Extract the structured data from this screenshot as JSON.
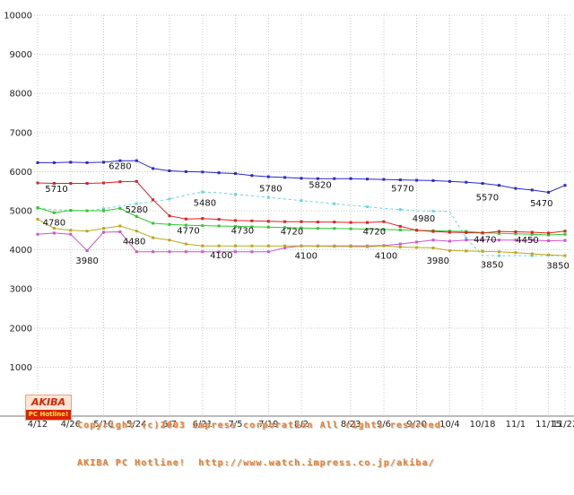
{
  "chart_data": {
    "type": "line",
    "title": "",
    "xlabel": "",
    "ylabel": "",
    "grid": true,
    "legend": "none",
    "background": "#ffffff",
    "y_axis": {
      "min": 0,
      "max": 10000,
      "tick_interval": 1000,
      "tick_labels": [
        "1000",
        "2000",
        "3000",
        "4000",
        "5000",
        "6000",
        "7000",
        "8000",
        "9000",
        "10000"
      ]
    },
    "x_axis": {
      "tick_labels": [
        "4/12",
        "4/26",
        "5/10",
        "5/24",
        "6/7",
        "6/21",
        "7/5",
        "7/19",
        "8/2",
        "8/23",
        "9/6",
        "9/20",
        "10/4",
        "10/18",
        "11/1",
        "11/15",
        "11/22"
      ],
      "tick_days": [
        0,
        14,
        28,
        42,
        56,
        70,
        84,
        98,
        112,
        133,
        147,
        161,
        175,
        189,
        203,
        217,
        224
      ]
    },
    "x_week_dates": [
      "4/12",
      "4/19",
      "4/26",
      "5/3",
      "5/10",
      "5/17",
      "5/24",
      "5/31",
      "6/7",
      "6/14",
      "6/21",
      "6/28",
      "7/5",
      "7/12",
      "7/19",
      "7/26",
      "8/2",
      "8/9",
      "8/16",
      "8/23",
      "8/30",
      "9/6",
      "9/13",
      "9/20",
      "9/27",
      "10/4",
      "10/11",
      "10/18",
      "10/25",
      "11/1",
      "11/8",
      "11/15",
      "11/22"
    ],
    "series": [
      {
        "name": "series-cyan-dashed",
        "color": "#66d5e5",
        "dash": "3 3",
        "marker_every": 2,
        "values": [
          5060,
          5030,
          5010,
          5000,
          5050,
          5120,
          5180,
          5230,
          5300,
          5400,
          5480,
          5460,
          5420,
          5380,
          5340,
          5300,
          5260,
          5220,
          5180,
          5140,
          5100,
          5060,
          5030,
          5000,
          4990,
          4980,
          4300,
          3850,
          3850,
          3850,
          3850,
          3850,
          3850
        ]
      },
      {
        "name": "series-magenta",
        "color": "#cc55cc",
        "dash": null,
        "marker_every": 1,
        "values": [
          4400,
          4430,
          4400,
          3980,
          4450,
          4460,
          3950,
          3950,
          3950,
          3950,
          3950,
          3950,
          3950,
          3950,
          3950,
          4050,
          4100,
          4100,
          4100,
          4100,
          4100,
          4110,
          4150,
          4200,
          4250,
          4220,
          4250,
          4260,
          4250,
          4250,
          4250,
          4230,
          4240
        ]
      },
      {
        "name": "series-olive",
        "color": "#b9a81f",
        "dash": null,
        "marker_every": 1,
        "values": [
          4780,
          4550,
          4500,
          4480,
          4550,
          4610,
          4480,
          4310,
          4250,
          4150,
          4100,
          4100,
          4100,
          4100,
          4100,
          4100,
          4100,
          4095,
          4090,
          4085,
          4080,
          4100,
          4070,
          4060,
          4050,
          3980,
          3970,
          3960,
          3950,
          3930,
          3900,
          3870,
          3850
        ]
      },
      {
        "name": "series-green",
        "color": "#30c830",
        "dash": null,
        "marker_every": 1,
        "values": [
          5080,
          4950,
          5010,
          5000,
          5000,
          5060,
          4850,
          4680,
          4650,
          4630,
          4620,
          4610,
          4600,
          4590,
          4580,
          4570,
          4560,
          4550,
          4545,
          4540,
          4530,
          4520,
          4510,
          4500,
          4490,
          4480,
          4470,
          4440,
          4420,
          4410,
          4400,
          4380,
          4400
        ]
      },
      {
        "name": "series-red",
        "color": "#dd2020",
        "dash": null,
        "marker_every": 1,
        "values": [
          5710,
          5700,
          5700,
          5700,
          5710,
          5740,
          5750,
          5280,
          4870,
          4790,
          4800,
          4780,
          4750,
          4740,
          4730,
          4720,
          4720,
          4710,
          4710,
          4700,
          4700,
          4720,
          4600,
          4500,
          4470,
          4450,
          4440,
          4430,
          4470,
          4460,
          4450,
          4430,
          4480
        ]
      },
      {
        "name": "series-blue",
        "color": "#2929c8",
        "dash": null,
        "marker_every": 1,
        "values": [
          6230,
          6230,
          6240,
          6230,
          6240,
          6280,
          6280,
          6080,
          6020,
          6000,
          5990,
          5970,
          5950,
          5900,
          5870,
          5850,
          5830,
          5820,
          5820,
          5820,
          5810,
          5800,
          5790,
          5780,
          5770,
          5750,
          5730,
          5700,
          5650,
          5570,
          5530,
          5470,
          5650
        ]
      }
    ],
    "annotations": [
      {
        "text": "6280",
        "day": 35,
        "value": 6150
      },
      {
        "text": "5710",
        "day": 8,
        "value": 5560
      },
      {
        "text": "5280",
        "day": 42,
        "value": 5030
      },
      {
        "text": "5480",
        "day": 71,
        "value": 5210
      },
      {
        "text": "5780",
        "day": 99,
        "value": 5570
      },
      {
        "text": "5820",
        "day": 120,
        "value": 5660
      },
      {
        "text": "5770",
        "day": 155,
        "value": 5570
      },
      {
        "text": "4980",
        "day": 164,
        "value": 4800
      },
      {
        "text": "5570",
        "day": 191,
        "value": 5340
      },
      {
        "text": "5470",
        "day": 214,
        "value": 5200
      },
      {
        "text": "4780",
        "day": 7,
        "value": 4700
      },
      {
        "text": "3980",
        "day": 21,
        "value": 3730
      },
      {
        "text": "4480",
        "day": 41,
        "value": 4220
      },
      {
        "text": "4770",
        "day": 64,
        "value": 4490
      },
      {
        "text": "4730",
        "day": 87,
        "value": 4490
      },
      {
        "text": "4720",
        "day": 108,
        "value": 4470
      },
      {
        "text": "4720",
        "day": 143,
        "value": 4470
      },
      {
        "text": "4100",
        "day": 78,
        "value": 3860
      },
      {
        "text": "4100",
        "day": 114,
        "value": 3850
      },
      {
        "text": "4100",
        "day": 148,
        "value": 3850
      },
      {
        "text": "3980",
        "day": 170,
        "value": 3730
      },
      {
        "text": "4470",
        "day": 190,
        "value": 4270
      },
      {
        "text": "4450",
        "day": 208,
        "value": 4250
      },
      {
        "text": "3850",
        "day": 193,
        "value": 3620
      },
      {
        "text": "3850",
        "day": 221,
        "value": 3600
      }
    ]
  },
  "footer": {
    "copyright_line1": "Copyright (c)2003 impress corporation All rights reserved.",
    "copyright_line2": "AKIBA PC Hotline!  http://www.watch.impress.co.jp/akiba/",
    "text_color": "#ef7d2a"
  },
  "logo": {
    "top": "AKIBA",
    "bottom": "PC Hotline!"
  }
}
